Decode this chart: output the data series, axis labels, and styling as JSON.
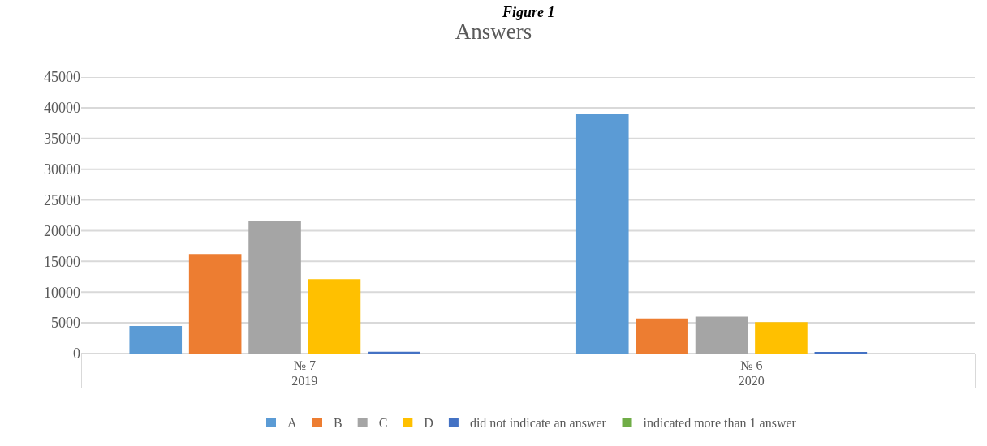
{
  "chart_data": {
    "type": "bar",
    "title": "Answers",
    "categories": [
      "№ 7",
      "№ 6"
    ],
    "series": [
      {
        "name": "A",
        "color": "#5b9bd5",
        "values": [
          4500,
          39000
        ]
      },
      {
        "name": "B",
        "color": "#ed7d31",
        "values": [
          16200,
          5700
        ]
      },
      {
        "name": "C",
        "color": "#a5a5a5",
        "values": [
          21600,
          6000
        ]
      },
      {
        "name": "D",
        "color": "#ffc000",
        "values": [
          12100,
          5100
        ]
      },
      {
        "name": "did not indicate an answer",
        "color": "#4472c4",
        "values": [
          300,
          200
        ]
      },
      {
        "name": "indicated more than 1 answer",
        "color": "#70ad47",
        "values": [
          0,
          0
        ]
      }
    ],
    "annotations": [
      "Figure 1",
      "2019",
      "2020"
    ],
    "ylim": [
      0,
      45000
    ],
    "yticks": [
      0,
      5000,
      10000,
      15000,
      20000,
      25000,
      30000,
      35000,
      40000,
      45000
    ],
    "grid": "y",
    "legend": "bottom"
  }
}
